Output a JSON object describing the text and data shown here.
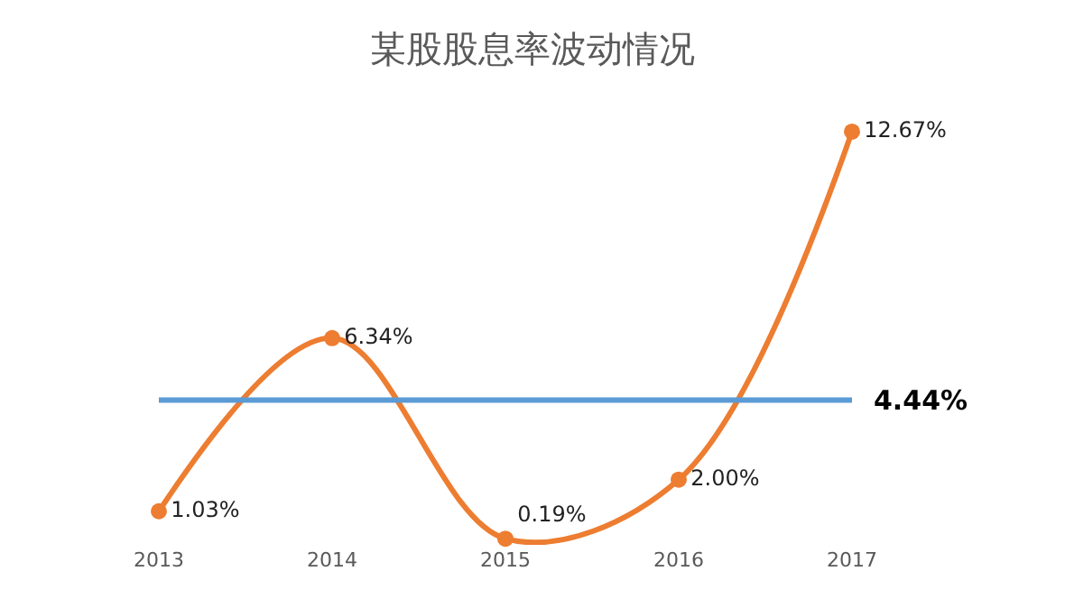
{
  "chart_data": {
    "type": "line",
    "title": "某股股息率波动情况",
    "categories": [
      "2013",
      "2014",
      "2015",
      "2016",
      "2017"
    ],
    "series": [
      {
        "color": "#ed7d31",
        "values": [
          1.03,
          6.34,
          0.19,
          2.0,
          12.67
        ],
        "value_labels": [
          "1.03%",
          "6.34%",
          "0.19%",
          "2.00%",
          "12.67%"
        ]
      }
    ],
    "ref_lines": [
      {
        "axis": "y",
        "value": 4.44,
        "label": "4.44%",
        "color": "#5b9bd5",
        "line_style": "solid"
      }
    ],
    "marker": "circle",
    "line_style": "solid",
    "legend": false,
    "tick_labels": "x"
  }
}
